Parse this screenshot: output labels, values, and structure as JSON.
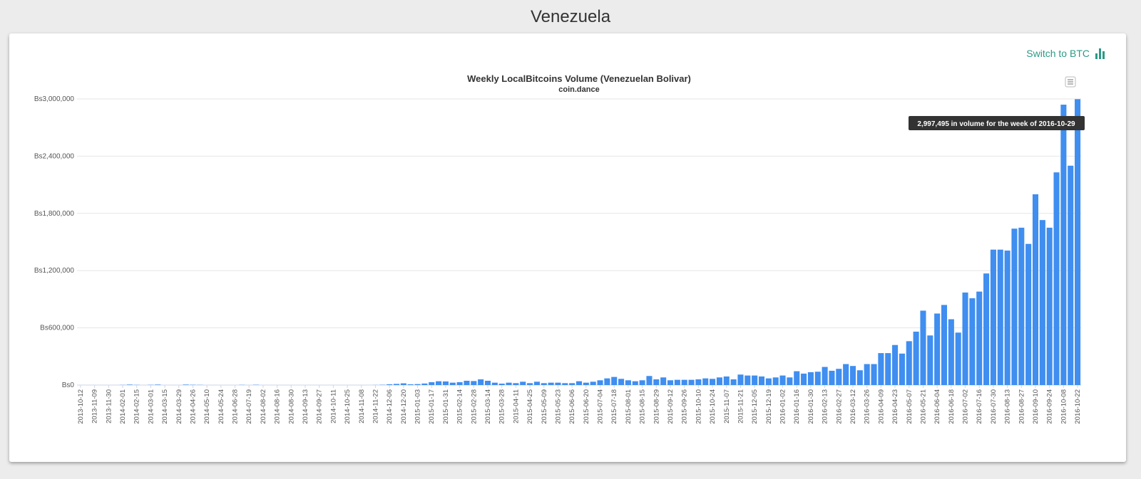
{
  "page": {
    "title": "Venezuela"
  },
  "toolbar": {
    "switch_label": "Switch to BTC",
    "switch_icon": "bar-chart-icon"
  },
  "chart_menu": {
    "icon": "hamburger-menu-icon"
  },
  "tooltip": {
    "text": "2,997,495 in volume for the week of 2016-10-29"
  },
  "colors": {
    "bar": "#3f8ef0",
    "accent": "#2b9a87",
    "tooltip_bg": "#333333"
  },
  "chart_data": {
    "type": "bar",
    "title": "Weekly LocalBitcoins Volume (Venezuelan Bolivar)",
    "subtitle": "coin.dance",
    "xlabel": "",
    "ylabel": "",
    "ylim": [
      0,
      3000000
    ],
    "yticks": [
      0,
      600000,
      1200000,
      1800000,
      2400000,
      3000000
    ],
    "ytick_labels": [
      "Bs0",
      "Bs600,000",
      "Bs1,200,000",
      "Bs1,800,000",
      "Bs2,400,000",
      "Bs3,000,000"
    ],
    "grid": true,
    "legend": "none",
    "highlighted_point": {
      "week": "2016-10-29",
      "value": 2997495
    },
    "series": [
      {
        "name": "",
        "values": [
          0,
          0,
          0,
          0,
          0,
          0,
          1500,
          5000,
          2000,
          0,
          2500,
          5000,
          0,
          0,
          0,
          5000,
          3000,
          2000,
          0,
          0,
          0,
          0,
          0,
          2000,
          0,
          3000,
          0,
          0,
          0,
          0,
          0,
          0,
          0,
          0,
          0,
          0,
          0,
          0,
          0,
          0,
          0,
          0,
          1000,
          3000,
          8000,
          12000,
          18000,
          8000,
          10000,
          16000,
          30000,
          40000,
          38000,
          25000,
          30000,
          45000,
          42000,
          60000,
          45000,
          25000,
          15000,
          25000,
          20000,
          35000,
          20000,
          35000,
          20000,
          25000,
          25000,
          20000,
          20000,
          40000,
          25000,
          35000,
          50000,
          70000,
          85000,
          65000,
          50000,
          40000,
          50000,
          95000,
          60000,
          80000,
          50000,
          55000,
          55000,
          55000,
          60000,
          70000,
          65000,
          80000,
          90000,
          60000,
          110000,
          100000,
          100000,
          90000,
          70000,
          80000,
          100000,
          80000,
          145000,
          120000,
          135000,
          140000,
          190000,
          150000,
          170000,
          220000,
          200000,
          155000,
          220000,
          220000,
          335000,
          335000,
          420000,
          330000,
          460000,
          560000,
          780000,
          520000,
          750000,
          840000,
          690000,
          550000,
          970000,
          910000,
          980000,
          1170000,
          1420000,
          1420000,
          1410000,
          1640000,
          1650000,
          1480000,
          2000000,
          1730000,
          1650000,
          2230000,
          2940000,
          2300000,
          2997495
        ]
      }
    ],
    "xtick_labels": [
      "2013-10-12",
      "2013-11-09",
      "2013-11-30",
      "2014-02-01",
      "2014-02-15",
      "2014-03-01",
      "2014-03-15",
      "2014-03-29",
      "2014-04-26",
      "2014-05-10",
      "2014-05-24",
      "2014-06-28",
      "2014-07-19",
      "2014-08-02",
      "2014-08-16",
      "2014-08-30",
      "2014-09-13",
      "2014-09-27",
      "2014-10-11",
      "2014-10-25",
      "2014-11-08",
      "2014-11-22",
      "2014-12-06",
      "2014-12-20",
      "2015-01-03",
      "2015-01-17",
      "2015-01-31",
      "2015-02-14",
      "2015-02-28",
      "2015-03-14",
      "2015-03-28",
      "2015-04-11",
      "2015-04-25",
      "2015-05-09",
      "2015-05-23",
      "2015-06-06",
      "2015-06-20",
      "2015-07-04",
      "2015-07-18",
      "2015-08-01",
      "2015-08-15",
      "2015-08-29",
      "2015-09-12",
      "2015-09-26",
      "2015-10-10",
      "2015-10-24",
      "2015-11-07",
      "2015-11-21",
      "2015-12-05",
      "2015-12-19",
      "2016-01-02",
      "2016-01-16",
      "2016-01-30",
      "2016-02-13",
      "2016-02-27",
      "2016-03-12",
      "2016-03-26",
      "2016-04-09",
      "2016-04-23",
      "2016-05-07",
      "2016-05-21",
      "2016-06-04",
      "2016-06-18",
      "2016-07-02",
      "2016-07-16",
      "2016-07-30",
      "2016-08-13",
      "2016-08-27",
      "2016-09-10",
      "2016-09-24",
      "2016-10-08",
      "2016-10-22"
    ]
  }
}
